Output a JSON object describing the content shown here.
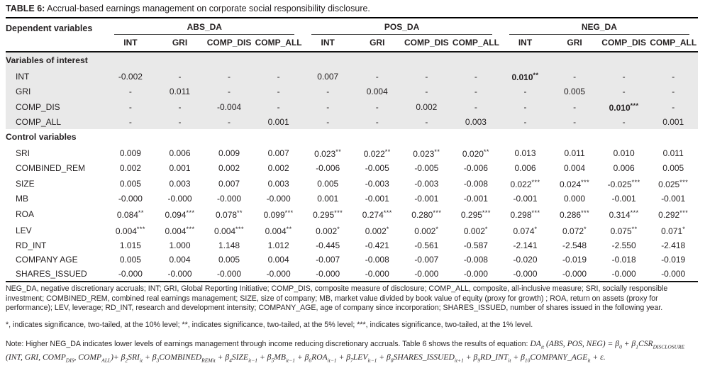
{
  "title": {
    "label": "TABLE 6:",
    "text": " Accrual-based earnings management on corporate social responsibility disclosure."
  },
  "table": {
    "row_header": "Dependent variables",
    "groups": [
      {
        "label": "ABS_DA",
        "columns": [
          "INT",
          "GRI",
          "COMP_DIS",
          "COMP_ALL"
        ]
      },
      {
        "label": "POS_DA",
        "columns": [
          "INT",
          "GRI",
          "COMP_DIS",
          "COMP_ALL"
        ]
      },
      {
        "label": "NEG_DA",
        "columns": [
          "INT",
          "GRI",
          "COMP_DIS",
          "COMP_ALL"
        ]
      }
    ],
    "sections": [
      {
        "header": "Variables of interest",
        "shaded": true,
        "rows": [
          {
            "label": "INT",
            "cells": [
              "-0.002",
              "-",
              "-",
              "-",
              "0.007",
              "-",
              "-",
              "-",
              {
                "text": "0.010**",
                "bold": true
              },
              "-",
              "-",
              "-"
            ]
          },
          {
            "label": "GRI",
            "cells": [
              "-",
              "0.011",
              "-",
              "-",
              "-",
              "0.004",
              "-",
              "-",
              "-",
              "0.005",
              "-",
              "-"
            ]
          },
          {
            "label": "COMP_DIS",
            "cells": [
              "-",
              "-",
              "-0.004",
              "-",
              "-",
              "-",
              "0.002",
              "-",
              "-",
              "-",
              {
                "text": "0.010***",
                "bold": true
              },
              "-"
            ]
          },
          {
            "label": "COMP_ALL",
            "cells": [
              "-",
              "-",
              "-",
              "0.001",
              "-",
              "-",
              "-",
              "0.003",
              "-",
              "-",
              "-",
              "0.001"
            ]
          }
        ]
      },
      {
        "header": "Control variables",
        "shaded": false,
        "rows": [
          {
            "label": "SRI",
            "cells": [
              "0.009",
              "0.006",
              "0.009",
              "0.007",
              "0.023**",
              "0.022**",
              "0.023**",
              "0.020**",
              "0.013",
              "0.011",
              "0.010",
              "0.011"
            ]
          },
          {
            "label": "COMBINED_REM",
            "cells": [
              "0.002",
              "0.001",
              "0.002",
              "0.002",
              "-0.006",
              "-0.005",
              "-0.005",
              "-0.006",
              "0.006",
              "0.004",
              "0.006",
              "0.005"
            ]
          },
          {
            "label": "SIZE",
            "cells": [
              "0.005",
              "0.003",
              "0.007",
              "0.003",
              "0.005",
              "-0.003",
              "-0.003",
              "-0.008",
              "0.022***",
              "0.024***",
              "-0.025***",
              "0.025***"
            ]
          },
          {
            "label": "MB",
            "cells": [
              "-0.000",
              "-0.000",
              "-0.000",
              "-0.000",
              "0.001",
              "-0.001",
              "-0.001",
              "-0.001",
              "-0.001",
              "0.000",
              "-0.001",
              "-0.001"
            ]
          },
          {
            "label": "ROA",
            "cells": [
              "0.084**",
              "0.094***",
              "0.078**",
              "0.099***",
              "0.295***",
              "0.274***",
              "0.280***",
              "0.295***",
              "0.298***",
              "0.286***",
              "0.314***",
              "0.292***"
            ]
          },
          {
            "label": "LEV",
            "cells": [
              "0.004***",
              "0.004***",
              "0.004***",
              "0.004**",
              "0.002*",
              "0.002*",
              "0.002*",
              "0.002*",
              "0.074*",
              "0.072*",
              "0.075**",
              "0.071*"
            ]
          },
          {
            "label": "RD_INT",
            "cells": [
              "1.015",
              "1.000",
              "1.148",
              "1.012",
              "-0.445",
              "-0.421",
              "-0.561",
              "-0.587",
              "-2.141",
              "-2.548",
              "-2.550",
              "-2.418"
            ]
          },
          {
            "label": "COMPANY AGE",
            "cells": [
              "0.005",
              "0.004",
              "0.005",
              "0.004",
              "-0.007",
              "-0.008",
              "-0.007",
              "-0.008",
              "-0.020",
              "-0.019",
              "-0.018",
              "-0.019"
            ]
          },
          {
            "label": "SHARES_ISSUED",
            "cells": [
              "-0.000",
              "-0.000",
              "-0.000",
              "-0.000",
              "-0.000",
              "-0.000",
              "-0.000",
              "-0.000",
              "-0.000",
              "-0.000",
              "-0.000",
              "-0.000"
            ]
          }
        ]
      }
    ]
  },
  "footnotes": {
    "abbreviations": "NEG_DA, negative discretionary accruals; INT; GRI, Global Reporting Initiative; COMP_DIS, composite measure of disclosure; COMP_ALL, composite, all-inclusive measure; SRI, socially responsible investment; COMBINED_REM, combined real earnings management; SIZE, size of company; MB, market value divided by book value of equity (proxy for growth) ; ROA, return on assets (proxy for performance); LEV, leverage; RD_INT, research and development intensity; COMPANY_AGE, age of company since incorporation; SHARES_ISSUED, number of shares issued in the following year.",
    "significance": "*, indicates significance, two-tailed, at the 10% level; **, indicates significance, two-tailed, at the 5% level; ***, indicates significance, two-tailed, at the 1% level.",
    "note_segments": [
      {
        "t": "Note: Higher NEG_DA indicates lower levels of earnings management through income reducing discretionary accruals. Table 6 shows the results of equation: ",
        "s": "plain"
      },
      {
        "t": "DA",
        "s": "eq"
      },
      {
        "t": "it",
        "s": "sub"
      },
      {
        "t": " (ABS, POS, NEG) = β",
        "s": "eq"
      },
      {
        "t": "0",
        "s": "sub"
      },
      {
        "t": " + β",
        "s": "eq"
      },
      {
        "t": "1",
        "s": "sub"
      },
      {
        "t": "CSR",
        "s": "eq"
      },
      {
        "t": "DISCLOSURE",
        "s": "sub"
      },
      {
        "t": " (INT, GRI, COMP",
        "s": "eq"
      },
      {
        "t": "DIS",
        "s": "sub"
      },
      {
        "t": ", COMP",
        "s": "eq"
      },
      {
        "t": "ALL",
        "s": "sub"
      },
      {
        "t": ")+ β",
        "s": "eq"
      },
      {
        "t": "2",
        "s": "sub"
      },
      {
        "t": "SRI",
        "s": "eq"
      },
      {
        "t": "it",
        "s": "sub"
      },
      {
        "t": " + β",
        "s": "eq"
      },
      {
        "t": "3",
        "s": "sub"
      },
      {
        "t": "COMBINED",
        "s": "eq"
      },
      {
        "t": "REMit",
        "s": "sub"
      },
      {
        "t": " + β",
        "s": "eq"
      },
      {
        "t": "4",
        "s": "sub"
      },
      {
        "t": "SIZE",
        "s": "eq"
      },
      {
        "t": "it−1",
        "s": "sub"
      },
      {
        "t": " + β",
        "s": "eq"
      },
      {
        "t": "5",
        "s": "sub"
      },
      {
        "t": "MB",
        "s": "eq"
      },
      {
        "t": "it−1",
        "s": "sub"
      },
      {
        "t": " + β",
        "s": "eq"
      },
      {
        "t": "6",
        "s": "sub"
      },
      {
        "t": "ROA",
        "s": "eq"
      },
      {
        "t": "it−1",
        "s": "sub"
      },
      {
        "t": " + β",
        "s": "eq"
      },
      {
        "t": "7",
        "s": "sub"
      },
      {
        "t": "LEV",
        "s": "eq"
      },
      {
        "t": "it−1",
        "s": "sub"
      },
      {
        "t": " + β",
        "s": "eq"
      },
      {
        "t": "8",
        "s": "sub"
      },
      {
        "t": "SHARES_ISSUED",
        "s": "eq"
      },
      {
        "t": "it+1",
        "s": "sub"
      },
      {
        "t": " + β",
        "s": "eq"
      },
      {
        "t": "9",
        "s": "sub"
      },
      {
        "t": "RD_INT",
        "s": "eq"
      },
      {
        "t": "it",
        "s": "sub"
      },
      {
        "t": " + β",
        "s": "eq"
      },
      {
        "t": "10",
        "s": "sub"
      },
      {
        "t": "COMPANY_AGE",
        "s": "eq"
      },
      {
        "t": "it",
        "s": "sub"
      },
      {
        "t": " + ε.",
        "s": "eq"
      }
    ]
  }
}
